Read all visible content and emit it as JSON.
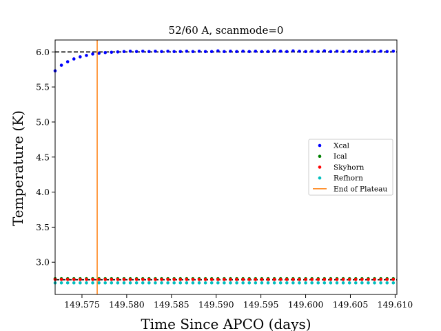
{
  "chart_data": {
    "type": "scatter",
    "title": "52/60 A, scanmode=0",
    "xlabel": "Time Since APCO (days)",
    "ylabel": "Temperature (K)",
    "xlim": [
      149.572,
      149.6102
    ],
    "ylim": [
      2.54,
      6.17
    ],
    "xticks": [
      149.575,
      149.58,
      149.585,
      149.59,
      149.595,
      149.6,
      149.605,
      149.61
    ],
    "xtick_labels": [
      "149.575",
      "149.580",
      "149.585",
      "149.590",
      "149.595",
      "149.600",
      "149.605",
      "149.610"
    ],
    "yticks": [
      3.0,
      3.5,
      4.0,
      4.5,
      5.0,
      5.5,
      6.0
    ],
    "ytick_labels": [
      "3.0",
      "3.5",
      "4.0",
      "4.5",
      "5.0",
      "5.5",
      "6.0"
    ],
    "reference_lines": [
      {
        "axis": "y",
        "value": 6.0,
        "style": "dashed",
        "color": "#000000"
      },
      {
        "axis": "y",
        "value": 2.75,
        "style": "dashed",
        "color": "#000000"
      }
    ],
    "plateau_end_x": 149.5767,
    "series": [
      {
        "name": "Xcal",
        "color": "#0000ff",
        "marker": "point",
        "x": [
          149.572,
          149.5727,
          149.5734,
          149.5741,
          149.5748,
          149.5755,
          149.5762,
          149.5769,
          149.5776,
          149.5783,
          149.579,
          149.5797,
          149.5804,
          149.5811,
          149.5818,
          149.5825,
          149.5832,
          149.5839,
          149.5846,
          149.5853,
          149.586,
          149.5867,
          149.5874,
          149.5881,
          149.5888,
          149.5895,
          149.5902,
          149.5909,
          149.5916,
          149.5923,
          149.593,
          149.5937,
          149.5944,
          149.5951,
          149.5958,
          149.5965,
          149.5972,
          149.5979,
          149.5986,
          149.5993,
          149.6,
          149.6007,
          149.6014,
          149.6021,
          149.6028,
          149.6035,
          149.6042,
          149.6049,
          149.6056,
          149.6063,
          149.607,
          149.6077,
          149.6084,
          149.6091,
          149.6098
        ],
        "y": [
          5.73,
          5.81,
          5.86,
          5.9,
          5.93,
          5.95,
          5.97,
          5.98,
          5.99,
          5.995,
          6.0,
          6.005,
          6.01,
          6.005,
          6.01,
          6.005,
          6.01,
          6.005,
          6.01,
          6.005,
          6.005,
          6.01,
          6.005,
          6.01,
          6.005,
          6.005,
          6.015,
          6.005,
          6.01,
          6.005,
          6.01,
          6.005,
          6.01,
          6.005,
          6.005,
          6.015,
          6.01,
          6.005,
          6.015,
          6.01,
          6.005,
          6.01,
          6.005,
          6.015,
          6.005,
          6.01,
          6.005,
          6.01,
          6.005,
          6.005,
          6.01,
          6.005,
          6.01,
          6.005,
          6.01
        ]
      },
      {
        "name": "Ical",
        "color": "#008000",
        "marker": "point",
        "x": [
          149.572,
          149.5727,
          149.5734,
          149.5741,
          149.5748,
          149.5755,
          149.5762,
          149.5769,
          149.5776,
          149.5783,
          149.579,
          149.5797,
          149.5804,
          149.5811,
          149.5818,
          149.5825,
          149.5832,
          149.5839,
          149.5846,
          149.5853,
          149.586,
          149.5867,
          149.5874,
          149.5881,
          149.5888,
          149.5895,
          149.5902,
          149.5909,
          149.5916,
          149.5923,
          149.593,
          149.5937,
          149.5944,
          149.5951,
          149.5958,
          149.5965,
          149.5972,
          149.5979,
          149.5986,
          149.5993,
          149.6,
          149.6007,
          149.6014,
          149.6021,
          149.6028,
          149.6035,
          149.6042,
          149.6049,
          149.6056,
          149.6063,
          149.607,
          149.6077,
          149.6084,
          149.6091,
          149.6098
        ],
        "y": [
          2.765,
          2.765,
          2.765,
          2.765,
          2.765,
          2.765,
          2.765,
          2.765,
          2.765,
          2.765,
          2.765,
          2.765,
          2.765,
          2.765,
          2.765,
          2.765,
          2.765,
          2.765,
          2.765,
          2.765,
          2.765,
          2.765,
          2.765,
          2.765,
          2.765,
          2.765,
          2.765,
          2.765,
          2.765,
          2.765,
          2.765,
          2.765,
          2.765,
          2.765,
          2.765,
          2.765,
          2.765,
          2.765,
          2.765,
          2.765,
          2.765,
          2.765,
          2.765,
          2.765,
          2.765,
          2.765,
          2.765,
          2.765,
          2.765,
          2.765,
          2.765,
          2.765,
          2.765,
          2.765,
          2.765
        ]
      },
      {
        "name": "Skyhorn",
        "color": "#ff0000",
        "marker": "point",
        "x": [
          149.572,
          149.5727,
          149.5734,
          149.5741,
          149.5748,
          149.5755,
          149.5762,
          149.5769,
          149.5776,
          149.5783,
          149.579,
          149.5797,
          149.5804,
          149.5811,
          149.5818,
          149.5825,
          149.5832,
          149.5839,
          149.5846,
          149.5853,
          149.586,
          149.5867,
          149.5874,
          149.5881,
          149.5888,
          149.5895,
          149.5902,
          149.5909,
          149.5916,
          149.5923,
          149.593,
          149.5937,
          149.5944,
          149.5951,
          149.5958,
          149.5965,
          149.5972,
          149.5979,
          149.5986,
          149.5993,
          149.6,
          149.6007,
          149.6014,
          149.6021,
          149.6028,
          149.6035,
          149.6042,
          149.6049,
          149.6056,
          149.6063,
          149.607,
          149.6077,
          149.6084,
          149.6091,
          149.6098
        ],
        "y": [
          2.755,
          2.755,
          2.755,
          2.755,
          2.755,
          2.755,
          2.755,
          2.755,
          2.755,
          2.755,
          2.755,
          2.755,
          2.755,
          2.755,
          2.755,
          2.755,
          2.755,
          2.755,
          2.755,
          2.755,
          2.755,
          2.755,
          2.755,
          2.755,
          2.755,
          2.755,
          2.755,
          2.755,
          2.755,
          2.755,
          2.755,
          2.755,
          2.755,
          2.755,
          2.755,
          2.755,
          2.755,
          2.755,
          2.755,
          2.755,
          2.755,
          2.755,
          2.755,
          2.755,
          2.755,
          2.755,
          2.755,
          2.755,
          2.755,
          2.755,
          2.755,
          2.755,
          2.755,
          2.755,
          2.755
        ]
      },
      {
        "name": "Refhorn",
        "color": "#00bfbf",
        "marker": "point",
        "x": [
          149.572,
          149.5727,
          149.5734,
          149.5741,
          149.5748,
          149.5755,
          149.5762,
          149.5769,
          149.5776,
          149.5783,
          149.579,
          149.5797,
          149.5804,
          149.5811,
          149.5818,
          149.5825,
          149.5832,
          149.5839,
          149.5846,
          149.5853,
          149.586,
          149.5867,
          149.5874,
          149.5881,
          149.5888,
          149.5895,
          149.5902,
          149.5909,
          149.5916,
          149.5923,
          149.593,
          149.5937,
          149.5944,
          149.5951,
          149.5958,
          149.5965,
          149.5972,
          149.5979,
          149.5986,
          149.5993,
          149.6,
          149.6007,
          149.6014,
          149.6021,
          149.6028,
          149.6035,
          149.6042,
          149.6049,
          149.6056,
          149.6063,
          149.607,
          149.6077,
          149.6084,
          149.6091,
          149.6098
        ],
        "y": [
          2.705,
          2.705,
          2.705,
          2.705,
          2.705,
          2.705,
          2.705,
          2.705,
          2.705,
          2.705,
          2.705,
          2.705,
          2.705,
          2.705,
          2.705,
          2.705,
          2.705,
          2.705,
          2.705,
          2.705,
          2.705,
          2.705,
          2.705,
          2.705,
          2.705,
          2.705,
          2.705,
          2.705,
          2.705,
          2.705,
          2.705,
          2.705,
          2.705,
          2.705,
          2.705,
          2.705,
          2.705,
          2.705,
          2.705,
          2.705,
          2.705,
          2.705,
          2.705,
          2.705,
          2.705,
          2.705,
          2.705,
          2.705,
          2.705,
          2.705,
          2.705,
          2.705,
          2.705,
          2.705,
          2.705
        ]
      }
    ],
    "legend": {
      "placement": "center-right",
      "entries": [
        {
          "label": "Xcal",
          "kind": "marker",
          "color": "#0000ff"
        },
        {
          "label": "Ical",
          "kind": "marker",
          "color": "#008000"
        },
        {
          "label": "Skyhorn",
          "kind": "marker",
          "color": "#ff0000"
        },
        {
          "label": "Refhorn",
          "kind": "marker",
          "color": "#00bfbf"
        },
        {
          "label": "End of Plateau",
          "kind": "line",
          "color": "#ff7f0e"
        }
      ]
    }
  }
}
